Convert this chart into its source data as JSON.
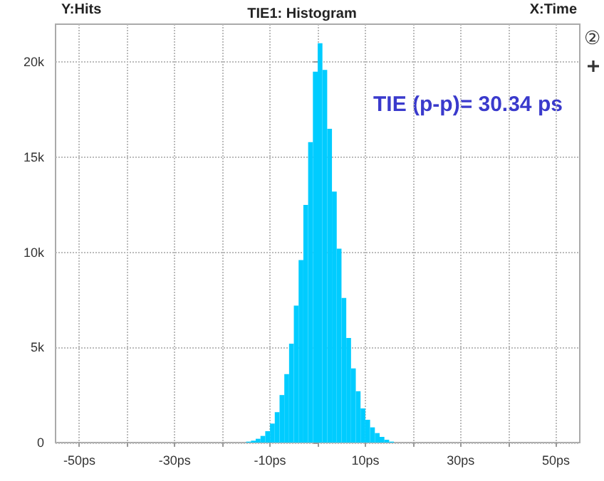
{
  "chart_data": {
    "type": "histogram",
    "title": "TIE1: Histogram",
    "ylabel": "Y:Hits",
    "xlabel": "X:Time",
    "annotations": [
      "TIE (p-p)= 30.34 ps",
      "②"
    ],
    "color": "#00ccff",
    "bins": [
      -15,
      -14,
      -13,
      -12,
      -11,
      -10,
      -9,
      -8,
      -7,
      -6,
      -5,
      -4,
      -3,
      -2,
      -1,
      0,
      1,
      2,
      3,
      4,
      5,
      6,
      7,
      8,
      9,
      10,
      11,
      12,
      13,
      14,
      15,
      16
    ],
    "values": [
      50,
      100,
      200,
      350,
      600,
      1000,
      1600,
      2500,
      3600,
      5200,
      7200,
      9600,
      12500,
      15800,
      19500,
      21000,
      19600,
      16500,
      13200,
      10200,
      7600,
      5500,
      3900,
      2700,
      1800,
      1200,
      800,
      500,
      300,
      150,
      50
    ],
    "xlim": [
      -55,
      55
    ],
    "xticks": [
      {
        "value": -50,
        "label": "-50ps"
      },
      {
        "value": -40,
        "label": null
      },
      {
        "value": -30,
        "label": "-30ps"
      },
      {
        "value": -20,
        "label": null
      },
      {
        "value": -10,
        "label": "-10ps"
      },
      {
        "value": 0,
        "label": null
      },
      {
        "value": 10,
        "label": "10ps"
      },
      {
        "value": 20,
        "label": null
      },
      {
        "value": 30,
        "label": "30ps"
      },
      {
        "value": 40,
        "label": null
      },
      {
        "value": 50,
        "label": "50ps"
      }
    ],
    "ylim": [
      0,
      22000
    ],
    "yticks": [
      0,
      {
        "value": 5000,
        "label": "5k"
      },
      {
        "value": 10000,
        "label": "10k"
      },
      {
        "value": 15000,
        "label": "15k"
      },
      {
        "value": 20000,
        "label": "20k"
      }
    ],
    "grid": true
  }
}
